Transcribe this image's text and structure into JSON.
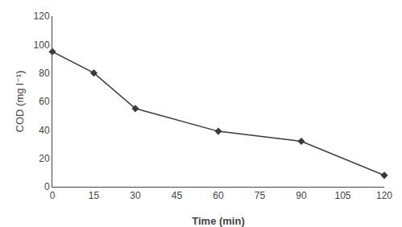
{
  "chart_data": {
    "type": "line",
    "x": [
      0,
      15,
      30,
      60,
      90,
      120
    ],
    "values": [
      95,
      80,
      55,
      39,
      32,
      8
    ],
    "xlabel": "Time (min)",
    "ylabel": "COD (mg l⁻¹)",
    "xlim": [
      0,
      120
    ],
    "ylim": [
      0,
      120
    ],
    "xticks": [
      0,
      15,
      30,
      45,
      60,
      75,
      90,
      105,
      120
    ],
    "yticks": [
      0,
      20,
      40,
      60,
      80,
      100,
      120
    ],
    "color": "#3a3a3a",
    "marker": "diamond",
    "grid": false
  }
}
